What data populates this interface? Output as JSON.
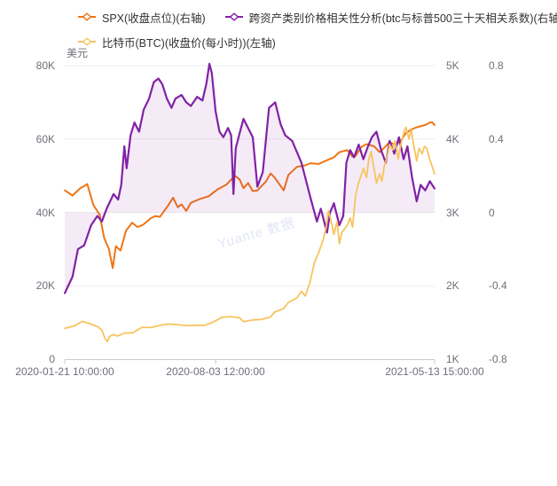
{
  "watermark": {
    "text": "Yuante 数据"
  },
  "colors": {
    "spx_orange": "#ef7514",
    "correlation_purple": "#8122a5",
    "btc_yellow": "#f7c45f",
    "area_fill": "#8122a5",
    "grid": "#ededed",
    "axis_line": "#cccccc",
    "legend_text": "#333333",
    "axis_text": "#6e7079"
  },
  "chart_data": {
    "type": "line",
    "title": "",
    "x_axis": {
      "type": "time",
      "start": "2020-01-21 10:00:00",
      "end": "2021-05-13 15:00:00",
      "tick_labels": [
        "2020-01-21 10:00:00",
        "2020-08-03 12:00:00",
        "2021-05-13 15:00:00"
      ]
    },
    "y_axes": [
      {
        "id": "btc_usd",
        "side": "left",
        "title": "美元",
        "range": [
          0,
          80000
        ],
        "ticks": [
          "80K",
          "60K",
          "40K",
          "20K",
          "0"
        ]
      },
      {
        "id": "spx",
        "side": "right",
        "title": "",
        "range": [
          1000,
          5000
        ],
        "ticks": [
          "5K",
          "4K",
          "3K",
          "2K",
          "1K"
        ]
      },
      {
        "id": "corr",
        "side": "right-outer",
        "title": "",
        "range": [
          -0.8,
          0.8
        ],
        "ticks": [
          "0.8",
          "0.4",
          "0",
          "-0.4",
          "-0.8"
        ]
      }
    ],
    "grid": true,
    "legend_position": "top-left",
    "series": [
      {
        "name": "SPX(收盘点位)(右轴)",
        "axis": "spx",
        "color": "#ef7514",
        "width": 2,
        "area": false,
        "points": [
          [
            "2020-01-21",
            3300
          ],
          [
            "2020-01-31",
            3230
          ],
          [
            "2020-02-10",
            3330
          ],
          [
            "2020-02-19",
            3385
          ],
          [
            "2020-02-27",
            3100
          ],
          [
            "2020-03-06",
            2970
          ],
          [
            "2020-03-12",
            2650
          ],
          [
            "2020-03-18",
            2500
          ],
          [
            "2020-03-23",
            2240
          ],
          [
            "2020-03-27",
            2540
          ],
          [
            "2020-04-02",
            2480
          ],
          [
            "2020-04-09",
            2750
          ],
          [
            "2020-04-17",
            2860
          ],
          [
            "2020-04-24",
            2800
          ],
          [
            "2020-05-01",
            2830
          ],
          [
            "2020-05-11",
            2920
          ],
          [
            "2020-05-17",
            2950
          ],
          [
            "2020-05-23",
            2940
          ],
          [
            "2020-06-03",
            3100
          ],
          [
            "2020-06-09",
            3200
          ],
          [
            "2020-06-15",
            3070
          ],
          [
            "2020-06-20",
            3110
          ],
          [
            "2020-06-26",
            3020
          ],
          [
            "2020-07-02",
            3130
          ],
          [
            "2020-07-13",
            3180
          ],
          [
            "2020-07-25",
            3220
          ],
          [
            "2020-08-05",
            3310
          ],
          [
            "2020-08-17",
            3380
          ],
          [
            "2020-08-28",
            3500
          ],
          [
            "2020-09-03",
            3450
          ],
          [
            "2020-09-08",
            3330
          ],
          [
            "2020-09-14",
            3400
          ],
          [
            "2020-09-20",
            3290
          ],
          [
            "2020-09-26",
            3300
          ],
          [
            "2020-10-07",
            3420
          ],
          [
            "2020-10-13",
            3530
          ],
          [
            "2020-10-18",
            3480
          ],
          [
            "2020-10-30",
            3300
          ],
          [
            "2020-11-05",
            3510
          ],
          [
            "2020-11-10",
            3560
          ],
          [
            "2020-11-16",
            3620
          ],
          [
            "2020-11-27",
            3640
          ],
          [
            "2020-12-03",
            3670
          ],
          [
            "2020-12-14",
            3660
          ],
          [
            "2020-12-27",
            3720
          ],
          [
            "2021-01-03",
            3750
          ],
          [
            "2021-01-10",
            3820
          ],
          [
            "2021-01-20",
            3850
          ],
          [
            "2021-01-27",
            3760
          ],
          [
            "2021-01-31",
            3770
          ],
          [
            "2021-02-07",
            3890
          ],
          [
            "2021-02-14",
            3930
          ],
          [
            "2021-02-24",
            3900
          ],
          [
            "2021-03-03",
            3820
          ],
          [
            "2021-03-09",
            3880
          ],
          [
            "2021-03-16",
            3960
          ],
          [
            "2021-03-23",
            3920
          ],
          [
            "2021-03-30",
            3970
          ],
          [
            "2021-04-06",
            4080
          ],
          [
            "2021-04-13",
            4130
          ],
          [
            "2021-04-20",
            4160
          ],
          [
            "2021-04-27",
            4180
          ],
          [
            "2021-05-03",
            4200
          ],
          [
            "2021-05-06",
            4220
          ],
          [
            "2021-05-10",
            4230
          ],
          [
            "2021-05-13",
            4190
          ]
        ]
      },
      {
        "name": "跨资产类别价格相关性分析(btc与标普500三十天相关系数)(右轴)",
        "axis": "corr",
        "color": "#8122a5",
        "width": 2.2,
        "area": true,
        "area_opacity": 0.09,
        "points": [
          [
            "2020-01-21",
            -0.44
          ],
          [
            "2020-01-31",
            -0.35
          ],
          [
            "2020-02-07",
            -0.2
          ],
          [
            "2020-02-15",
            -0.18
          ],
          [
            "2020-02-24",
            -0.07
          ],
          [
            "2020-03-03",
            -0.02
          ],
          [
            "2020-03-09",
            -0.05
          ],
          [
            "2020-03-15",
            0.02
          ],
          [
            "2020-03-24",
            0.1
          ],
          [
            "2020-03-30",
            0.07
          ],
          [
            "2020-04-03",
            0.15
          ],
          [
            "2020-04-07",
            0.36
          ],
          [
            "2020-04-10",
            0.24
          ],
          [
            "2020-04-15",
            0.42
          ],
          [
            "2020-04-20",
            0.49
          ],
          [
            "2020-04-26",
            0.44
          ],
          [
            "2020-05-02",
            0.56
          ],
          [
            "2020-05-09",
            0.62
          ],
          [
            "2020-05-15",
            0.71
          ],
          [
            "2020-05-21",
            0.73
          ],
          [
            "2020-05-26",
            0.7
          ],
          [
            "2020-06-01",
            0.62
          ],
          [
            "2020-06-07",
            0.57
          ],
          [
            "2020-06-12",
            0.62
          ],
          [
            "2020-06-20",
            0.64
          ],
          [
            "2020-06-26",
            0.6
          ],
          [
            "2020-07-02",
            0.58
          ],
          [
            "2020-07-10",
            0.63
          ],
          [
            "2020-07-17",
            0.61
          ],
          [
            "2020-07-22",
            0.7
          ],
          [
            "2020-07-26",
            0.81
          ],
          [
            "2020-07-29",
            0.76
          ],
          [
            "2020-08-03",
            0.55
          ],
          [
            "2020-08-08",
            0.44
          ],
          [
            "2020-08-13",
            0.41
          ],
          [
            "2020-08-19",
            0.46
          ],
          [
            "2020-08-23",
            0.42
          ],
          [
            "2020-08-26",
            0.1
          ],
          [
            "2020-08-29",
            0.35
          ],
          [
            "2020-09-03",
            0.43
          ],
          [
            "2020-09-08",
            0.51
          ],
          [
            "2020-09-14",
            0.46
          ],
          [
            "2020-09-20",
            0.41
          ],
          [
            "2020-09-26",
            0.14
          ],
          [
            "2020-10-03",
            0.22
          ],
          [
            "2020-10-11",
            0.57
          ],
          [
            "2020-10-19",
            0.6
          ],
          [
            "2020-10-26",
            0.48
          ],
          [
            "2020-11-01",
            0.42
          ],
          [
            "2020-11-10",
            0.39
          ],
          [
            "2020-11-22",
            0.27
          ],
          [
            "2020-12-03",
            0.09
          ],
          [
            "2020-12-12",
            -0.05
          ],
          [
            "2020-12-17",
            0.02
          ],
          [
            "2020-12-25",
            -0.11
          ],
          [
            "2020-12-29",
            0.0
          ],
          [
            "2021-01-03",
            0.05
          ],
          [
            "2021-01-10",
            -0.07
          ],
          [
            "2021-01-15",
            -0.02
          ],
          [
            "2021-01-19",
            0.27
          ],
          [
            "2021-01-24",
            0.34
          ],
          [
            "2021-01-29",
            0.3
          ],
          [
            "2021-02-04",
            0.37
          ],
          [
            "2021-02-10",
            0.29
          ],
          [
            "2021-02-16",
            0.36
          ],
          [
            "2021-02-21",
            0.41
          ],
          [
            "2021-02-27",
            0.44
          ],
          [
            "2021-03-05",
            0.34
          ],
          [
            "2021-03-11",
            0.27
          ],
          [
            "2021-03-16",
            0.39
          ],
          [
            "2021-03-22",
            0.32
          ],
          [
            "2021-03-28",
            0.41
          ],
          [
            "2021-04-03",
            0.29
          ],
          [
            "2021-04-08",
            0.36
          ],
          [
            "2021-04-14",
            0.19
          ],
          [
            "2021-04-20",
            0.06
          ],
          [
            "2021-04-25",
            0.15
          ],
          [
            "2021-05-01",
            0.12
          ],
          [
            "2021-05-07",
            0.17
          ],
          [
            "2021-05-13",
            0.13
          ]
        ]
      },
      {
        "name": "比特币(BTC)(收盘价(每小时))(左轴)",
        "axis": "btc_usd",
        "color": "#f7c45f",
        "width": 1.8,
        "area": false,
        "points": [
          [
            "2020-01-21",
            8400
          ],
          [
            "2020-01-28",
            8800
          ],
          [
            "2020-02-04",
            9200
          ],
          [
            "2020-02-12",
            10300
          ],
          [
            "2020-02-19",
            9900
          ],
          [
            "2020-02-27",
            9300
          ],
          [
            "2020-03-04",
            8800
          ],
          [
            "2020-03-09",
            7900
          ],
          [
            "2020-03-13",
            5600
          ],
          [
            "2020-03-16",
            4800
          ],
          [
            "2020-03-19",
            6200
          ],
          [
            "2020-03-24",
            6700
          ],
          [
            "2020-03-29",
            6300
          ],
          [
            "2020-04-07",
            7100
          ],
          [
            "2020-04-18",
            7200
          ],
          [
            "2020-04-30",
            8700
          ],
          [
            "2020-05-11",
            8600
          ],
          [
            "2020-05-23",
            9200
          ],
          [
            "2020-06-03",
            9600
          ],
          [
            "2020-06-15",
            9400
          ],
          [
            "2020-06-26",
            9150
          ],
          [
            "2020-07-08",
            9250
          ],
          [
            "2020-07-19",
            9200
          ],
          [
            "2020-07-30",
            10000
          ],
          [
            "2020-08-11",
            11400
          ],
          [
            "2020-08-22",
            11600
          ],
          [
            "2020-09-03",
            11300
          ],
          [
            "2020-09-08",
            10200
          ],
          [
            "2020-09-20",
            10700
          ],
          [
            "2020-10-01",
            10800
          ],
          [
            "2020-10-13",
            11500
          ],
          [
            "2020-10-18",
            12800
          ],
          [
            "2020-10-30",
            13800
          ],
          [
            "2020-11-05",
            15500
          ],
          [
            "2020-11-16",
            16700
          ],
          [
            "2020-11-22",
            18500
          ],
          [
            "2020-11-27",
            17200
          ],
          [
            "2020-12-03",
            21000
          ],
          [
            "2020-12-09",
            26500
          ],
          [
            "2020-12-14",
            28900
          ],
          [
            "2020-12-20",
            32500
          ],
          [
            "2020-12-24",
            36000
          ],
          [
            "2020-12-27",
            40500
          ],
          [
            "2020-12-31",
            37000
          ],
          [
            "2021-01-03",
            34000
          ],
          [
            "2021-01-07",
            37500
          ],
          [
            "2021-01-10",
            31500
          ],
          [
            "2021-01-13",
            34500
          ],
          [
            "2021-01-20",
            36500
          ],
          [
            "2021-01-24",
            38500
          ],
          [
            "2021-01-27",
            36000
          ],
          [
            "2021-01-31",
            44500
          ],
          [
            "2021-02-03",
            47500
          ],
          [
            "2021-02-10",
            52000
          ],
          [
            "2021-02-14",
            49500
          ],
          [
            "2021-02-17",
            54500
          ],
          [
            "2021-02-20",
            56500
          ],
          [
            "2021-02-24",
            51500
          ],
          [
            "2021-02-27",
            48000
          ],
          [
            "2021-03-03",
            50500
          ],
          [
            "2021-03-06",
            48500
          ],
          [
            "2021-03-09",
            52500
          ],
          [
            "2021-03-13",
            55500
          ],
          [
            "2021-03-16",
            58500
          ],
          [
            "2021-03-20",
            57000
          ],
          [
            "2021-03-23",
            59500
          ],
          [
            "2021-03-27",
            54500
          ],
          [
            "2021-03-30",
            58000
          ],
          [
            "2021-04-03",
            61500
          ],
          [
            "2021-04-06",
            63200
          ],
          [
            "2021-04-10",
            60000
          ],
          [
            "2021-04-13",
            62500
          ],
          [
            "2021-04-16",
            58500
          ],
          [
            "2021-04-20",
            54000
          ],
          [
            "2021-04-23",
            57500
          ],
          [
            "2021-04-27",
            56000
          ],
          [
            "2021-04-30",
            58000
          ],
          [
            "2021-05-03",
            57500
          ],
          [
            "2021-05-06",
            55000
          ],
          [
            "2021-05-10",
            52500
          ],
          [
            "2021-05-13",
            50500
          ]
        ]
      }
    ]
  }
}
